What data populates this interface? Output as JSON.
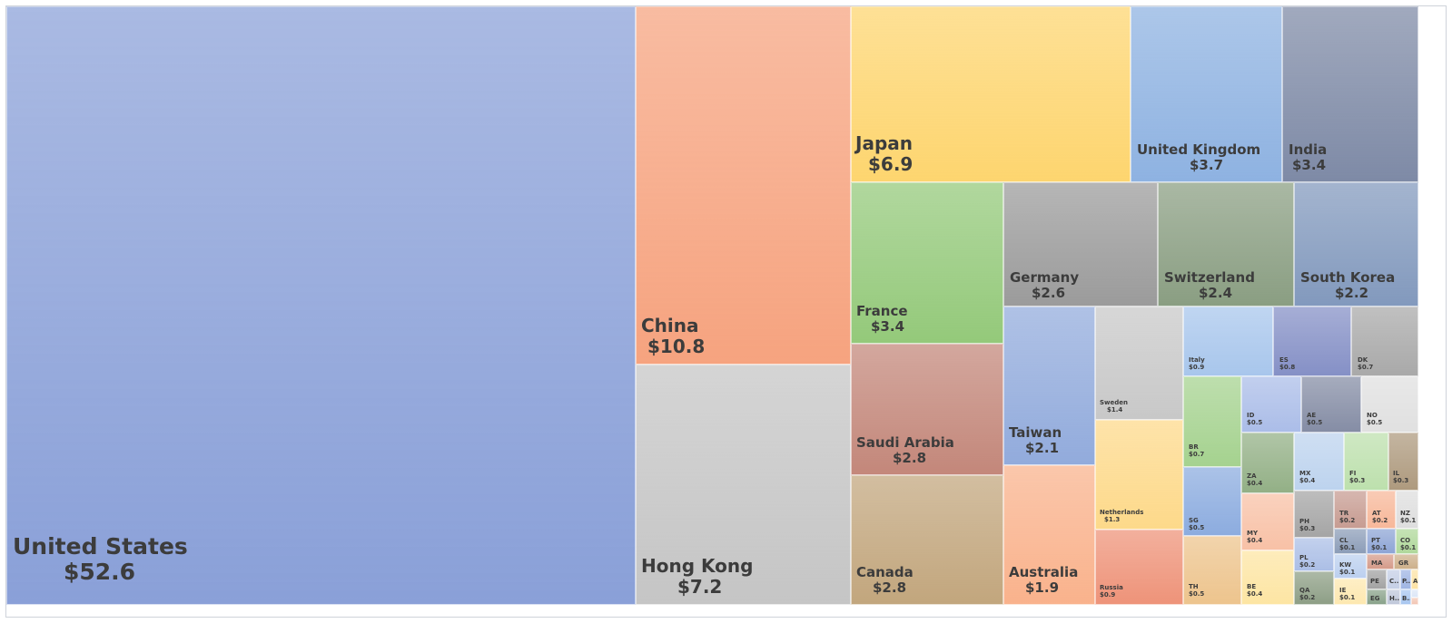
{
  "chart_data": {
    "type": "treemap",
    "unit_prefix": "$",
    "items": [
      {
        "name": "United States",
        "value": "52.6",
        "color": "#8aa0d8"
      },
      {
        "name": "China",
        "value": "10.8",
        "color": "#f6a37f"
      },
      {
        "name": "Hong Kong",
        "value": "7.2",
        "color": "#c5c5c5"
      },
      {
        "name": "Japan",
        "value": "6.9",
        "color": "#fdd56f"
      },
      {
        "name": "United Kingdom",
        "value": "3.7",
        "color": "#8eb2e1"
      },
      {
        "name": "India",
        "value": "3.4",
        "color": "#7e8aa6"
      },
      {
        "name": "France",
        "value": "3.4",
        "color": "#94c97a"
      },
      {
        "name": "Germany",
        "value": "2.6",
        "color": "#9b9b9b"
      },
      {
        "name": "Switzerland",
        "value": "2.4",
        "color": "#8a9e82"
      },
      {
        "name": "South Korea",
        "value": "2.2",
        "color": "#8299bd"
      },
      {
        "name": "Saudi Arabia",
        "value": "2.8",
        "color": "#c3877a"
      },
      {
        "name": "Canada",
        "value": "2.8",
        "color": "#c2a67d"
      },
      {
        "name": "Taiwan",
        "value": "2.1",
        "color": "#92abdc"
      },
      {
        "name": "Australia",
        "value": "1.9",
        "color": "#f9b28c"
      },
      {
        "name": "Sweden",
        "value": "1.4",
        "color": "#c8c8c8"
      },
      {
        "name": "Netherlands",
        "value": "1.3",
        "color": "#fdd98a"
      },
      {
        "name": "Russia",
        "value": "0.9",
        "color": "#ee9379"
      },
      {
        "name": "Italy",
        "value": "0.9",
        "color": "#a8c6ec"
      },
      {
        "name": "ES",
        "value": "0.8",
        "color": "#8590c6"
      },
      {
        "name": "DK",
        "value": "0.7",
        "color": "#a9a9a9"
      },
      {
        "name": "BR",
        "value": "0.7",
        "color": "#a5d28f"
      },
      {
        "name": "ID",
        "value": "0.5",
        "color": "#abbde8"
      },
      {
        "name": "AE",
        "value": "0.5",
        "color": "#858da5"
      },
      {
        "name": "NO",
        "value": "0.5",
        "color": "#e0e0e0"
      },
      {
        "name": "SG",
        "value": "0.5",
        "color": "#8cacdf"
      },
      {
        "name": "ZA",
        "value": "0.4",
        "color": "#93b086"
      },
      {
        "name": "MX",
        "value": "0.4",
        "color": "#bdd3ee"
      },
      {
        "name": "FI",
        "value": "0.3",
        "color": "#bde0ad"
      },
      {
        "name": "IL",
        "value": "0.3",
        "color": "#ae9a7e"
      },
      {
        "name": "MY",
        "value": "0.4",
        "color": "#f8c1a6"
      },
      {
        "name": "PH",
        "value": "0.3",
        "color": "#a5a5a5"
      },
      {
        "name": "TR",
        "value": "0.2",
        "color": "#c79c92"
      },
      {
        "name": "AT",
        "value": "0.2",
        "color": "#f7b89a"
      },
      {
        "name": "NZ",
        "value": "0.1",
        "color": "#dedede"
      },
      {
        "name": "CL",
        "value": "0.1",
        "color": "#8c9db8"
      },
      {
        "name": "PT",
        "value": "0.1",
        "color": "#8ea5d5"
      },
      {
        "name": "CO",
        "value": "0.1",
        "color": "#b0d89b"
      },
      {
        "name": "PL",
        "value": "0.2",
        "color": "#acbfe6"
      },
      {
        "name": "MA",
        "value": "",
        "color": "#d59b8a"
      },
      {
        "name": "GR",
        "value": "",
        "color": "#cdb08b"
      },
      {
        "name": "KW",
        "value": "0.1",
        "color": "#bcd0ef"
      },
      {
        "name": "PE",
        "value": "",
        "color": "#a3a3a3"
      },
      {
        "name": "C...",
        "value": "",
        "color": "#c5cfe6"
      },
      {
        "name": "P...",
        "value": "",
        "color": "#9fb5e3"
      },
      {
        "name": "A...",
        "value": "",
        "color": "#fde3a5"
      },
      {
        "name": "TH",
        "value": "0.5",
        "color": "#edc48d"
      },
      {
        "name": "BE",
        "value": "0.4",
        "color": "#fde5a3"
      },
      {
        "name": "QA",
        "value": "0.2",
        "color": "#8e9f86"
      },
      {
        "name": "IE",
        "value": "0.1",
        "color": "#fde8b0"
      },
      {
        "name": "EG",
        "value": "",
        "color": "#8aa38b"
      },
      {
        "name": "H...",
        "value": "",
        "color": "#c0c8da"
      },
      {
        "name": "B...",
        "value": "",
        "color": "#a9c7f0"
      },
      {
        "name": "",
        "value": "",
        "color": "#dce7f7"
      },
      {
        "name": "",
        "value": "",
        "color": "#f2c6b4"
      }
    ]
  }
}
